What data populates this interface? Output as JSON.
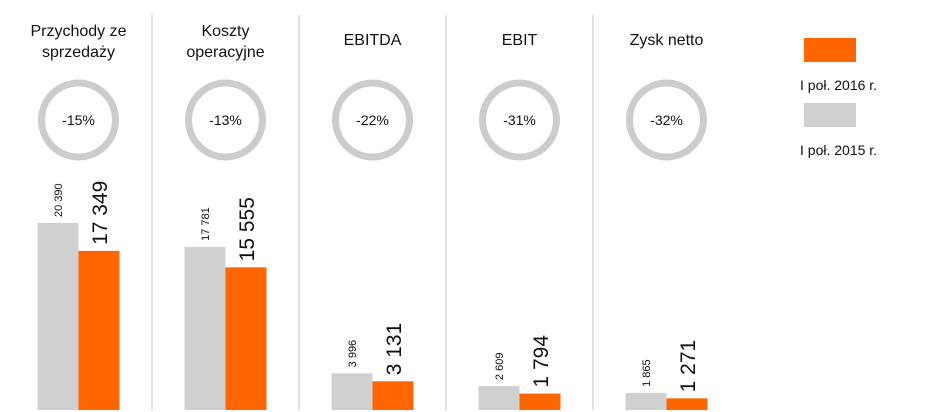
{
  "chart_data": {
    "type": "bar",
    "categories": [
      "Przychody ze sprzedaży",
      "Koszty operacyjne",
      "EBITDA",
      "EBIT",
      "Zysk netto"
    ],
    "changes": {
      "values": [
        -15,
        -13,
        -22,
        -31,
        -32
      ],
      "value_labels": [
        "-15%",
        "-13%",
        "-22%",
        "-31%",
        "-32%"
      ]
    },
    "series": [
      {
        "name": "I poł. 2015 r.",
        "color": "#d0d0d0",
        "values": [
          20390,
          17781,
          3996,
          2609,
          1865
        ],
        "value_labels": [
          "20 390",
          "17 781",
          "3 996",
          "2 609",
          "1 865"
        ]
      },
      {
        "name": "I poł. 2016 r.",
        "color": "#ff6600",
        "values": [
          17349,
          15555,
          3131,
          1794,
          1271
        ],
        "value_labels": [
          "17 349",
          "15 555",
          "3 131",
          "1 794",
          "1 271"
        ]
      }
    ],
    "legend": "right"
  }
}
